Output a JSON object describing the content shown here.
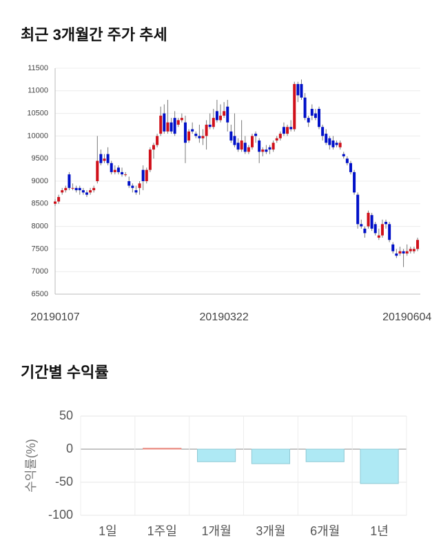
{
  "chart_data": [
    {
      "type": "candlestick",
      "title": "최근 3개월간 주가 추세",
      "categories": [
        "20190107",
        null,
        null,
        null,
        null,
        null,
        null,
        null,
        null,
        null,
        null,
        null,
        null,
        null,
        null,
        null,
        null,
        null,
        null,
        null,
        null,
        null,
        null,
        null,
        null,
        null,
        null,
        null,
        null,
        null,
        null,
        null,
        null,
        null,
        null,
        null,
        null,
        null,
        null,
        null,
        null,
        null,
        null,
        null,
        null,
        null,
        null,
        null,
        "20190322",
        null,
        null,
        null,
        null,
        null,
        null,
        null,
        null,
        null,
        null,
        null,
        null,
        null,
        null,
        null,
        null,
        null,
        null,
        null,
        null,
        null,
        null,
        null,
        null,
        null,
        null,
        null,
        null,
        null,
        null,
        null,
        null,
        null,
        null,
        null,
        null,
        null,
        null,
        null,
        null,
        null,
        null,
        null,
        null,
        null,
        null,
        null,
        null,
        null,
        null,
        null,
        "20190604",
        null,
        null,
        null
      ],
      "open": [
        8500,
        8550,
        8750,
        8800,
        9150,
        8850,
        8850,
        8850,
        8800,
        8750,
        8750,
        8800,
        9000,
        9600,
        9450,
        9600,
        9400,
        9200,
        9300,
        9200,
        9150,
        9000,
        8900,
        8800,
        8850,
        9250,
        9000,
        9250,
        9700,
        9800,
        10050,
        10500,
        10100,
        10300,
        10400,
        10250,
        10350,
        10300,
        9900,
        10150,
        10050,
        10000,
        9950,
        10000,
        10250,
        10200,
        10550,
        10350,
        10450,
        10650,
        10100,
        10000,
        9850,
        9700,
        9850,
        9650,
        9750,
        10050,
        9900,
        9650,
        9700,
        9750,
        9700,
        9900,
        9950,
        10200,
        10050,
        10200,
        10150,
        11150,
        11150,
        10850,
        10400,
        10600,
        10500,
        10600,
        10200,
        10050,
        9950,
        9900,
        9850,
        9750,
        9600,
        9500,
        9400,
        9200,
        8700,
        8050,
        7950,
        8000,
        8250,
        8050,
        7750,
        7800,
        8100,
        8050,
        7600,
        7400,
        7400,
        7450,
        7400,
        7450,
        7450,
        7500
      ],
      "high": [
        8600,
        8700,
        8850,
        8900,
        9200,
        8950,
        8900,
        8900,
        8850,
        8800,
        8850,
        8900,
        10000,
        9700,
        9600,
        9750,
        9450,
        9350,
        9350,
        9300,
        9200,
        9100,
        8950,
        8900,
        9000,
        9350,
        9300,
        9750,
        9850,
        10050,
        10650,
        10700,
        10800,
        10400,
        10550,
        10400,
        10500,
        10450,
        10150,
        10300,
        10100,
        10250,
        10150,
        10350,
        10500,
        10600,
        10800,
        10700,
        10750,
        10800,
        10250,
        10500,
        9950,
        10350,
        10000,
        9800,
        10050,
        10100,
        9950,
        9750,
        9800,
        9800,
        9900,
        10000,
        10100,
        10300,
        10250,
        10350,
        11200,
        11200,
        11250,
        10950,
        10450,
        10700,
        10600,
        10650,
        10250,
        10150,
        10000,
        10000,
        9900,
        9900,
        9650,
        9550,
        9450,
        9250,
        8750,
        8150,
        8000,
        8350,
        8300,
        8100,
        7950,
        8150,
        8150,
        8100,
        7650,
        7500,
        7550,
        7500,
        7600,
        7550,
        7550,
        7750
      ],
      "low": [
        8450,
        8500,
        8700,
        8750,
        8800,
        8800,
        8750,
        8700,
        8700,
        8650,
        8700,
        8750,
        8950,
        9350,
        9400,
        9350,
        9150,
        9150,
        9150,
        9100,
        9100,
        8850,
        8750,
        8700,
        8700,
        8800,
        8950,
        9200,
        9500,
        9750,
        10000,
        10050,
        10050,
        10050,
        10000,
        10200,
        10300,
        9400,
        9850,
        10050,
        9950,
        9850,
        9800,
        9700,
        10150,
        10150,
        10300,
        10300,
        10400,
        10100,
        9850,
        9750,
        9650,
        9650,
        9600,
        9600,
        9700,
        9850,
        9400,
        9550,
        9600,
        9600,
        9650,
        9850,
        9900,
        10000,
        10000,
        10100,
        10100,
        10750,
        10800,
        10350,
        10200,
        10350,
        10350,
        10150,
        9900,
        9800,
        9700,
        9700,
        9750,
        9700,
        9500,
        9350,
        9150,
        8700,
        7950,
        7950,
        7750,
        7950,
        7900,
        7800,
        7700,
        7750,
        7950,
        7650,
        7400,
        7300,
        7350,
        7100,
        7350,
        7400,
        7400,
        7450
      ],
      "close": [
        8550,
        8650,
        8800,
        8850,
        8850,
        8850,
        8800,
        8800,
        8750,
        8700,
        8800,
        8850,
        9450,
        9400,
        9500,
        9400,
        9200,
        9250,
        9200,
        9150,
        9150,
        8900,
        8850,
        8750,
        8950,
        9000,
        9250,
        9700,
        9800,
        10000,
        10450,
        10100,
        10300,
        10100,
        10050,
        10350,
        10400,
        9850,
        10100,
        10100,
        10000,
        9950,
        10000,
        10250,
        10200,
        10400,
        10350,
        10450,
        10550,
        10300,
        9900,
        9800,
        9700,
        9900,
        9650,
        9750,
        10000,
        10000,
        9650,
        9700,
        9650,
        9700,
        9850,
        9950,
        10050,
        10050,
        10200,
        10150,
        11150,
        10900,
        10850,
        10400,
        10300,
        10450,
        10400,
        10200,
        10000,
        9850,
        9800,
        9750,
        9800,
        9850,
        9550,
        9400,
        9200,
        8750,
        8050,
        8000,
        7850,
        8300,
        7950,
        7850,
        7800,
        8050,
        8050,
        7700,
        7450,
        7350,
        7450,
        7400,
        7450,
        7500,
        7500,
        7700
      ],
      "up_color": "#d0101a",
      "down_color": "#0010c8",
      "ylim": [
        6500,
        11500
      ],
      "yticks": [
        6500,
        7000,
        7500,
        8000,
        8500,
        9000,
        9500,
        10000,
        10500,
        11000,
        11500
      ],
      "grid": true
    },
    {
      "type": "bar",
      "title": "기간별 수익률",
      "y_label": "수익률(%)",
      "categories": [
        "1일",
        "1주일",
        "1개월",
        "3개월",
        "6개월",
        "1년"
      ],
      "values": [
        0,
        1.5,
        -19,
        -22,
        -19,
        -52
      ],
      "colors": [
        "#aee9f4",
        "#f4aaa2",
        "#aee9f4",
        "#aee9f4",
        "#aee9f4",
        "#aee9f4"
      ],
      "ylim": [
        -100,
        50
      ],
      "yticks": [
        50,
        0,
        -50,
        -100
      ],
      "grid": true
    }
  ]
}
